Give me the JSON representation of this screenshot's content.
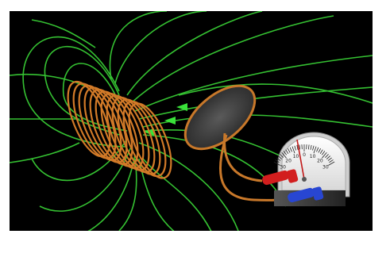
{
  "scene": {
    "background_color": "#000000",
    "frame_color": "#ffffff",
    "field_line_color": "#35c232",
    "arrow_color": "#3ae23a",
    "coil_color": "#d27a28",
    "loop_color": "#c8782a",
    "red_terminal_color": "#d21e1e",
    "blue_terminal_color": "#2846d2"
  },
  "galvanometer": {
    "scale_labels": [
      "30",
      "20",
      "10",
      "0",
      "10",
      "20",
      "30"
    ]
  }
}
